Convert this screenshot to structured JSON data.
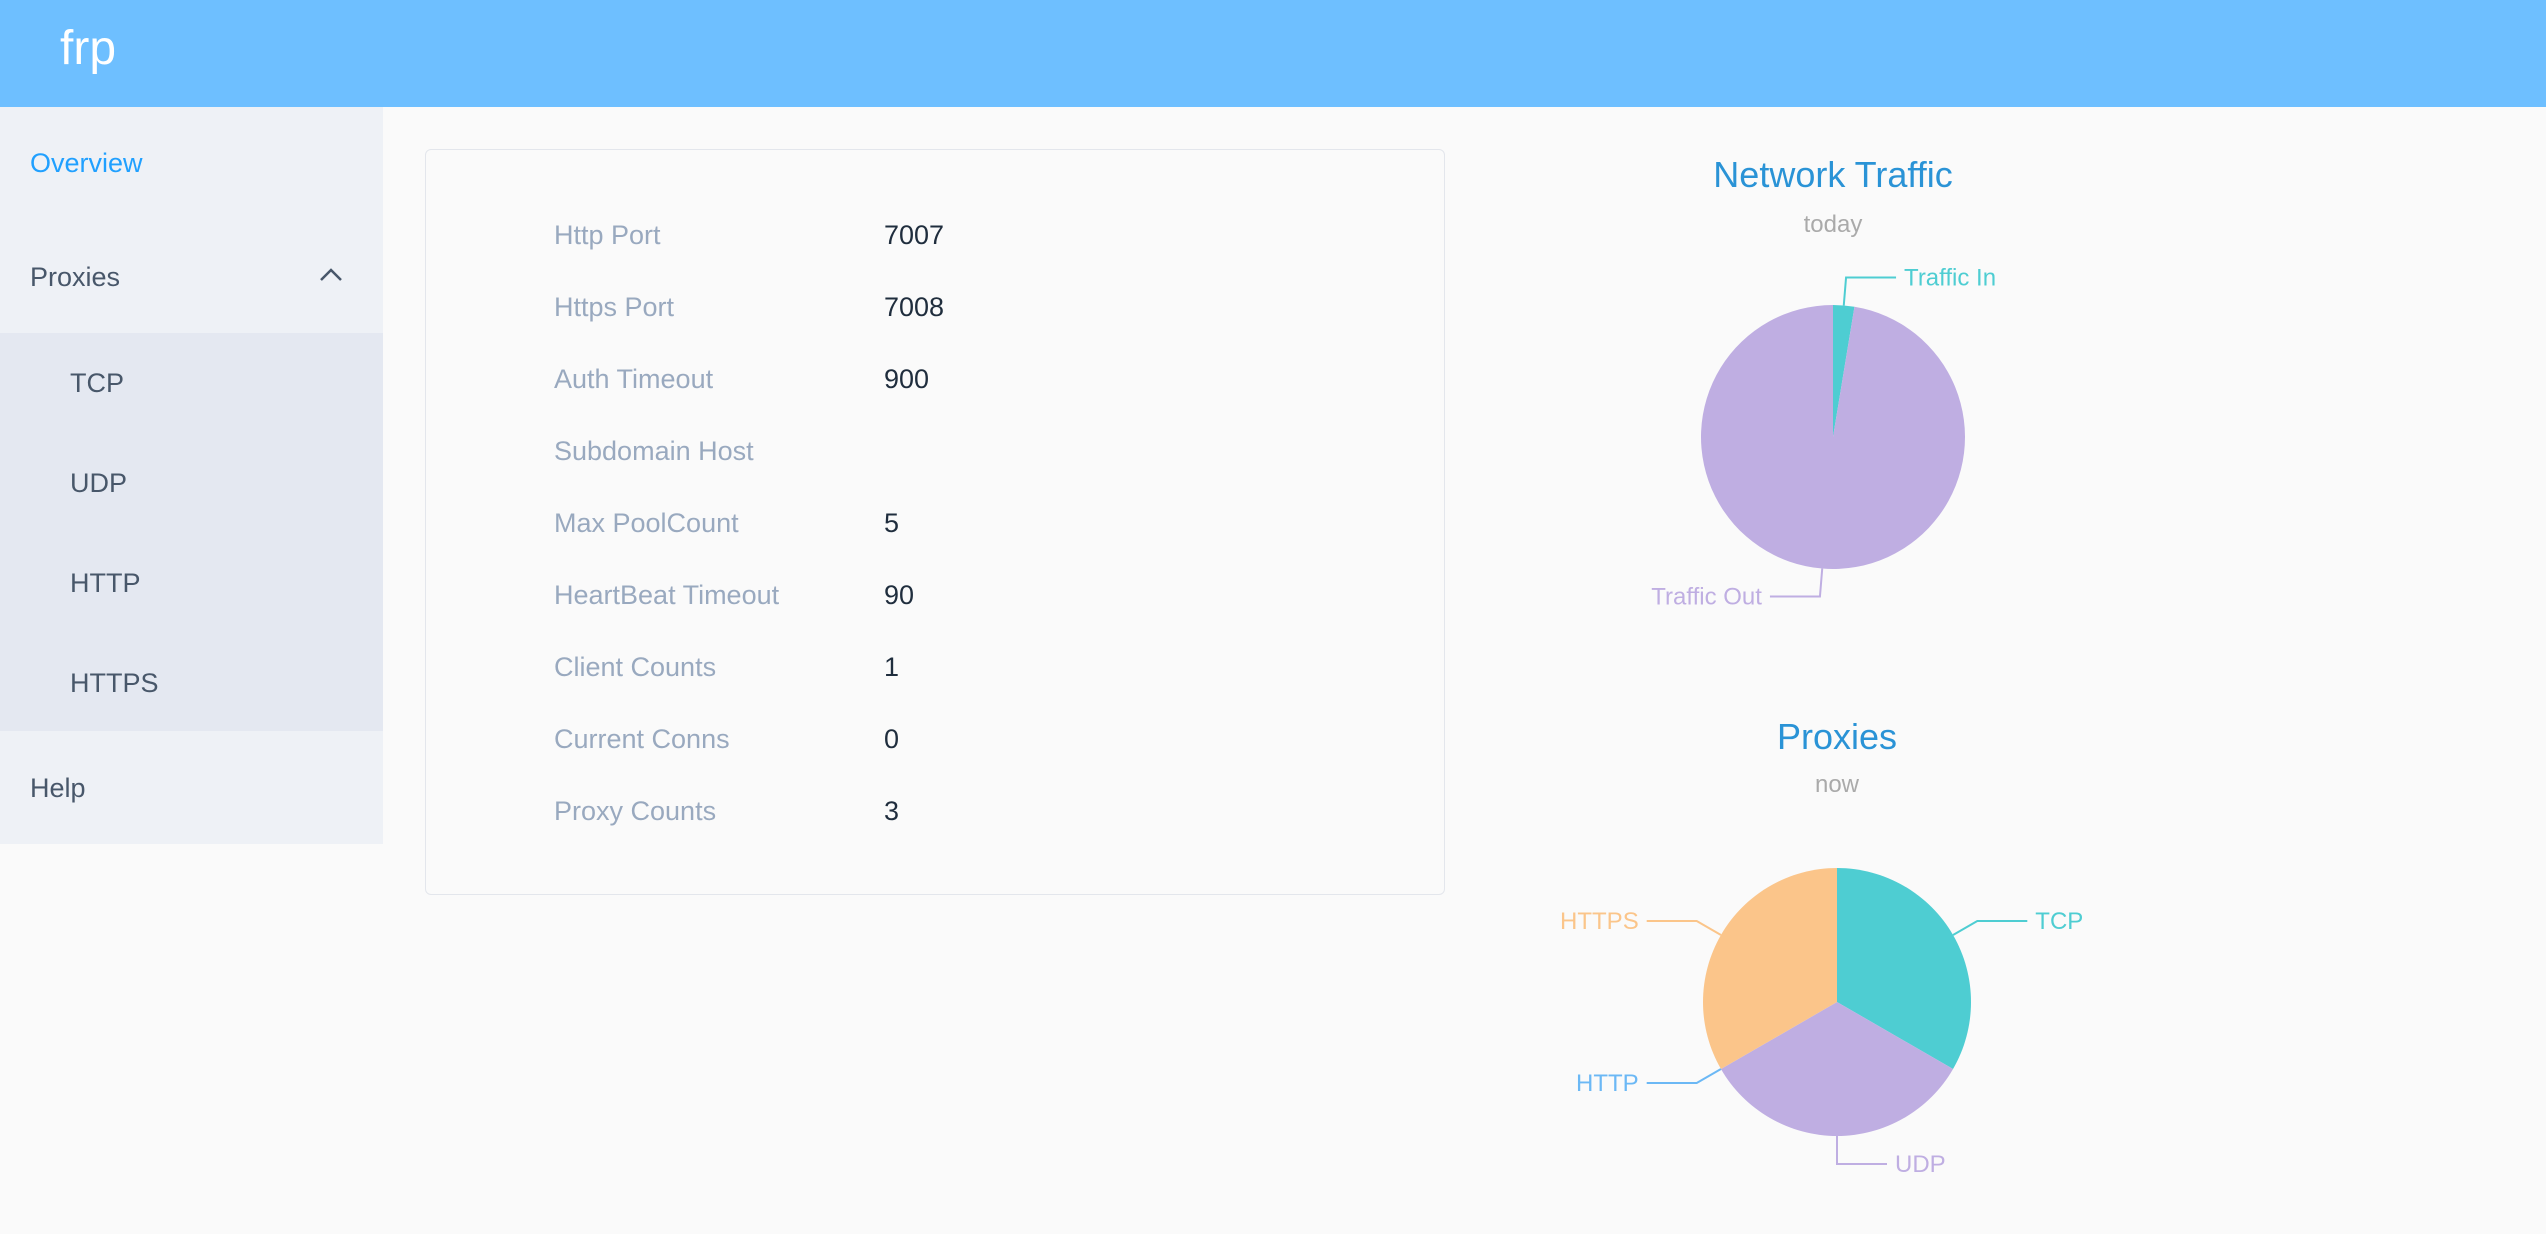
{
  "header": {
    "brand": "frp"
  },
  "sidebar": {
    "overview": "Overview",
    "proxies": "Proxies",
    "sub": [
      "TCP",
      "UDP",
      "HTTP",
      "HTTPS"
    ],
    "help": "Help"
  },
  "overview": {
    "rows": [
      {
        "label": "Http Port",
        "value": "7007"
      },
      {
        "label": "Https Port",
        "value": "7008"
      },
      {
        "label": "Auth Timeout",
        "value": "900"
      },
      {
        "label": "Subdomain Host",
        "value": ""
      },
      {
        "label": "Max PoolCount",
        "value": "5"
      },
      {
        "label": "HeartBeat Timeout",
        "value": "90"
      },
      {
        "label": "Client Counts",
        "value": "1"
      },
      {
        "label": "Current Conns",
        "value": "0"
      },
      {
        "label": "Proxy Counts",
        "value": "3"
      }
    ]
  },
  "colors": {
    "header": "#6ebfff",
    "title": "#2a93d6",
    "subtitle": "#aaaaaa"
  },
  "chart_data": [
    {
      "type": "pie",
      "title": "Network Traffic",
      "subtitle": "today",
      "labels": [
        "Traffic In",
        "Traffic Out"
      ],
      "values": [
        2.6,
        97.4
      ],
      "colors": [
        "#4ecdd2",
        "#bfaee2"
      ]
    },
    {
      "type": "pie",
      "title": "Proxies",
      "subtitle": "now",
      "labels": [
        "TCP",
        "UDP",
        "HTTP",
        "HTTPS"
      ],
      "values": [
        1,
        1,
        0,
        1
      ],
      "colors": [
        "#4ecdd2",
        "#bfaee2",
        "#6bb8f5",
        "#fbc58a"
      ]
    }
  ]
}
